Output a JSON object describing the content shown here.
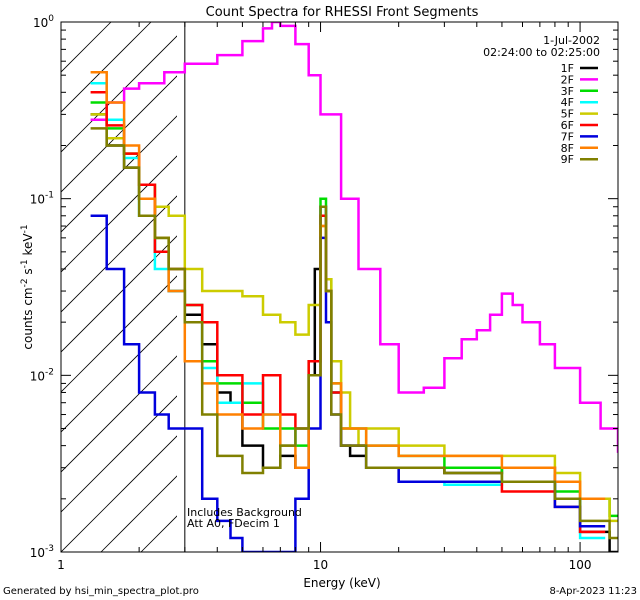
{
  "chart_data": {
    "type": "line",
    "title": "Count Spectra for RHESSI Front Segments",
    "xlabel": "Energy (keV)",
    "ylabel_base": "counts cm",
    "ylabel_exp1": "-2",
    "ylabel_mid": " s",
    "ylabel_exp2": "-1",
    "ylabel_end": " keV",
    "ylabel_exp3": "-1",
    "x_scale": "log",
    "y_scale": "log",
    "xlim": [
      1,
      140
    ],
    "ylim": [
      0.001,
      1.0
    ],
    "x_ticks": [
      {
        "value": 1,
        "label": "1"
      },
      {
        "value": 10,
        "label": "10"
      },
      {
        "value": 100,
        "label": "100"
      }
    ],
    "y_ticks": [
      {
        "value": 1,
        "base": "10",
        "exp": "0"
      },
      {
        "value": 0.1,
        "base": "10",
        "exp": "-1"
      },
      {
        "value": 0.01,
        "base": "10",
        "exp": "-2"
      },
      {
        "value": 0.001,
        "base": "10",
        "exp": "-3"
      }
    ],
    "date": "1-Jul-2002",
    "time_range": "02:24:00 to 02:25:00",
    "shaded_region_energy_max": 3,
    "annotation_line1": "Includes Background",
    "annotation_line2": "Att A0, FDecim 1",
    "series": [
      {
        "name": "1F",
        "color": "#000000",
        "x": [
          1.3,
          1.5,
          1.75,
          2.0,
          2.3,
          2.6,
          3.0,
          3.5,
          4.0,
          4.5,
          5.0,
          6.0,
          7.0,
          8.0,
          9.0,
          9.5,
          10.0,
          10.5,
          11.0,
          12.0,
          13.0,
          15.0,
          20.0,
          30.0,
          50.0,
          80.0,
          100.0,
          130.0
        ],
        "values": [
          0.3,
          0.2,
          0.15,
          0.1,
          0.05,
          0.03,
          0.022,
          0.015,
          0.008,
          0.007,
          0.004,
          0.003,
          0.0035,
          0.003,
          0.01,
          0.04,
          0.09,
          0.03,
          0.008,
          0.004,
          0.0035,
          0.003,
          0.003,
          0.0028,
          0.003,
          0.002,
          0.0013,
          0.001
        ]
      },
      {
        "name": "2F",
        "color": "#ff00ff",
        "x": [
          1.3,
          1.5,
          1.75,
          2.0,
          2.5,
          3.0,
          4.0,
          5.0,
          6.0,
          6.5,
          7.0,
          8.0,
          9.0,
          10.0,
          12.0,
          14.0,
          17.0,
          20.0,
          25.0,
          30.0,
          35.0,
          40.0,
          45.0,
          50.0,
          55.0,
          60.0,
          70.0,
          80.0,
          100.0,
          120.0,
          140.0
        ],
        "values": [
          0.28,
          0.35,
          0.42,
          0.45,
          0.52,
          0.58,
          0.65,
          0.78,
          0.92,
          1.0,
          0.95,
          0.75,
          0.5,
          0.3,
          0.1,
          0.04,
          0.015,
          0.008,
          0.0085,
          0.0125,
          0.016,
          0.018,
          0.022,
          0.029,
          0.025,
          0.02,
          0.015,
          0.011,
          0.007,
          0.005,
          0.0037
        ]
      },
      {
        "name": "3F",
        "color": "#00dd00",
        "x": [
          1.3,
          1.5,
          1.75,
          2.0,
          2.3,
          2.6,
          3.0,
          3.5,
          4.0,
          5.0,
          6.0,
          8.0,
          9.0,
          10.0,
          10.5,
          11.0,
          12.0,
          15.0,
          20.0,
          30.0,
          50.0,
          80.0,
          100.0,
          130.0
        ],
        "values": [
          0.35,
          0.25,
          0.18,
          0.12,
          0.06,
          0.04,
          0.025,
          0.012,
          0.009,
          0.007,
          0.005,
          0.004,
          0.012,
          0.1,
          0.035,
          0.009,
          0.005,
          0.004,
          0.0035,
          0.003,
          0.0025,
          0.0022,
          0.002,
          0.0016
        ]
      },
      {
        "name": "4F",
        "color": "#00ffff",
        "x": [
          1.3,
          1.5,
          1.75,
          2.0,
          2.3,
          2.6,
          3.0,
          3.5,
          4.0,
          5.0,
          6.0,
          7.0,
          8.0,
          9.0,
          10.0,
          10.5,
          11.0,
          12.0,
          15.0,
          20.0,
          30.0,
          50.0,
          80.0,
          100.0
        ],
        "values": [
          0.45,
          0.28,
          0.17,
          0.08,
          0.04,
          0.03,
          0.02,
          0.011,
          0.007,
          0.009,
          0.006,
          0.004,
          0.005,
          0.01,
          0.09,
          0.03,
          0.008,
          0.004,
          0.003,
          0.0025,
          0.0024,
          0.0025,
          0.002,
          0.0012
        ]
      },
      {
        "name": "5F",
        "color": "#cccc00",
        "x": [
          1.3,
          1.5,
          1.75,
          2.0,
          2.3,
          2.6,
          3.0,
          3.5,
          4.0,
          5.0,
          6.0,
          7.0,
          8.0,
          9.0,
          10.0,
          10.5,
          11.0,
          12.0,
          13.0,
          14.0,
          15.0,
          20.0,
          30.0,
          50.0,
          80.0,
          100.0,
          130.0
        ],
        "values": [
          0.3,
          0.22,
          0.18,
          0.12,
          0.09,
          0.08,
          0.04,
          0.03,
          0.03,
          0.028,
          0.022,
          0.02,
          0.017,
          0.025,
          0.07,
          0.035,
          0.012,
          0.008,
          0.005,
          0.004,
          0.005,
          0.004,
          0.0035,
          0.0035,
          0.0028,
          0.002,
          0.0015
        ]
      },
      {
        "name": "6F",
        "color": "#ff0000",
        "x": [
          1.3,
          1.5,
          1.75,
          2.0,
          2.3,
          2.6,
          3.0,
          3.5,
          4.0,
          5.0,
          6.0,
          7.0,
          8.0,
          9.0,
          10.0,
          10.5,
          11.0,
          12.0,
          15.0,
          20.0,
          30.0,
          50.0,
          80.0,
          100.0
        ],
        "values": [
          0.4,
          0.26,
          0.18,
          0.12,
          0.05,
          0.04,
          0.025,
          0.02,
          0.01,
          0.006,
          0.01,
          0.006,
          0.005,
          0.012,
          0.08,
          0.03,
          0.008,
          0.004,
          0.003,
          0.0025,
          0.0025,
          0.0022,
          0.0018,
          0.0013
        ]
      },
      {
        "name": "7F",
        "color": "#0000dd",
        "x": [
          1.3,
          1.5,
          1.75,
          2.0,
          2.3,
          2.6,
          3.0,
          3.5,
          4.0,
          4.5,
          5.0,
          6.0,
          8.0,
          9.0,
          10.0,
          10.5,
          11.0,
          12.0,
          15.0,
          20.0,
          30.0,
          50.0,
          80.0,
          100.0
        ],
        "values": [
          0.08,
          0.04,
          0.015,
          0.008,
          0.006,
          0.005,
          0.005,
          0.002,
          0.0015,
          0.0012,
          0.001,
          0.001,
          0.002,
          0.005,
          0.06,
          0.02,
          0.006,
          0.004,
          0.003,
          0.0025,
          0.0025,
          0.0025,
          0.0018,
          0.0014
        ]
      },
      {
        "name": "8F",
        "color": "#ff8000",
        "x": [
          1.3,
          1.5,
          1.75,
          2.0,
          2.3,
          2.6,
          3.0,
          3.5,
          4.0,
          5.0,
          6.0,
          7.0,
          8.0,
          9.0,
          10.0,
          10.5,
          11.0,
          12.0,
          15.0,
          20.0,
          30.0,
          50.0,
          80.0,
          100.0
        ],
        "values": [
          0.52,
          0.35,
          0.2,
          0.1,
          0.06,
          0.03,
          0.012,
          0.009,
          0.006,
          0.005,
          0.006,
          0.004,
          0.003,
          0.01,
          0.07,
          0.03,
          0.009,
          0.005,
          0.004,
          0.0035,
          0.0035,
          0.003,
          0.0025,
          0.002
        ]
      },
      {
        "name": "9F",
        "color": "#808000",
        "x": [
          1.3,
          1.5,
          1.75,
          2.0,
          2.3,
          2.6,
          3.0,
          3.5,
          4.0,
          5.0,
          6.0,
          7.0,
          8.0,
          9.0,
          10.0,
          10.5,
          11.0,
          12.0,
          15.0,
          20.0,
          30.0,
          50.0,
          80.0,
          100.0,
          130.0
        ],
        "values": [
          0.25,
          0.2,
          0.15,
          0.08,
          0.06,
          0.04,
          0.02,
          0.006,
          0.0035,
          0.0028,
          0.003,
          0.004,
          0.005,
          0.01,
          0.09,
          0.03,
          0.006,
          0.004,
          0.003,
          0.003,
          0.0028,
          0.0025,
          0.002,
          0.0015,
          0.0012
        ]
      }
    ]
  },
  "footer": {
    "left": "Generated by hsi_min_spectra_plot.pro",
    "right": "8-Apr-2023 11:23"
  }
}
